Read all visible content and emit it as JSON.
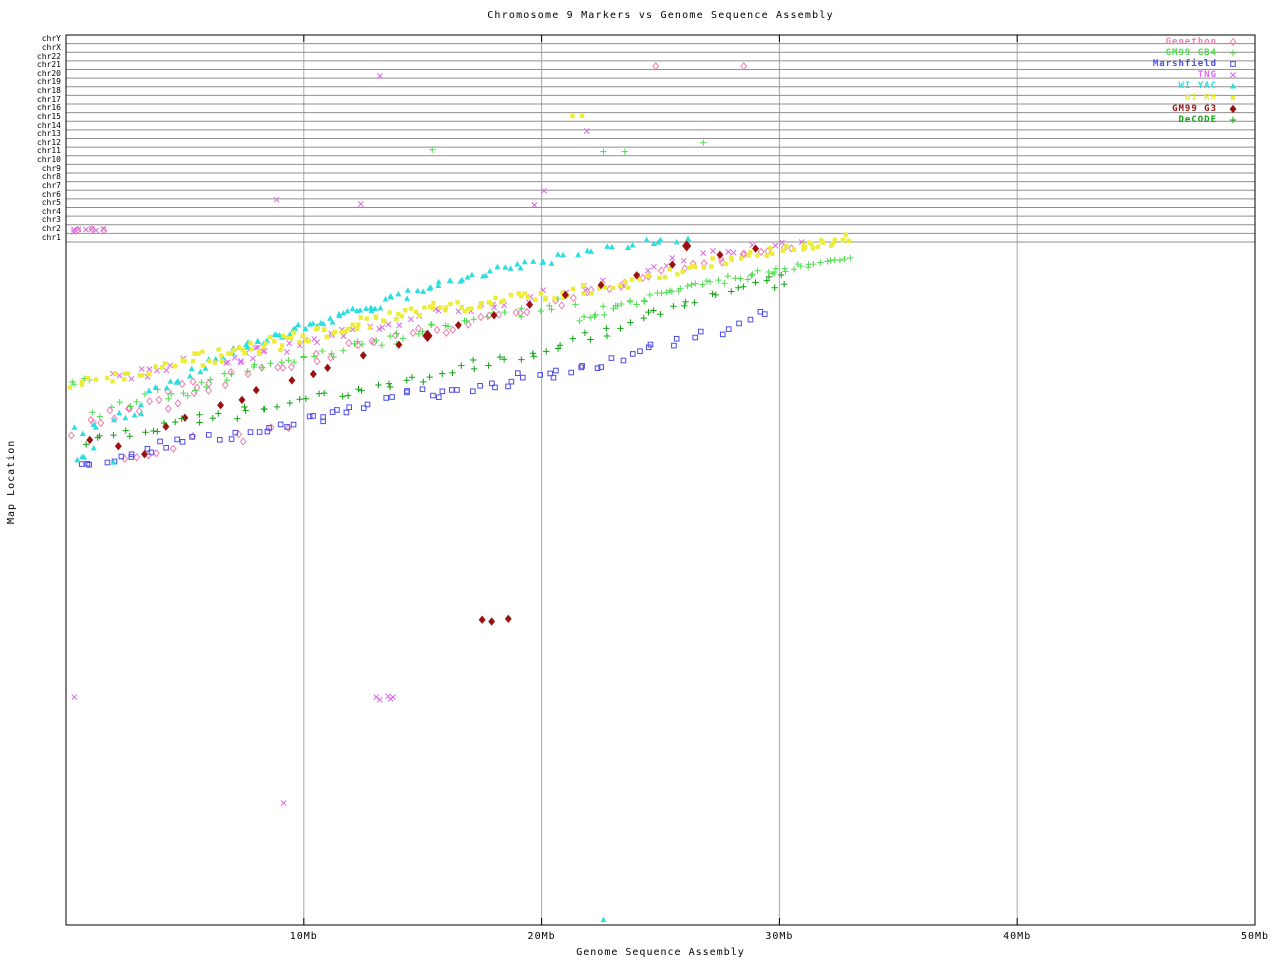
{
  "chart_data": {
    "type": "scatter",
    "title": "Chromosome 9 Markers vs Genome Sequence Assembly",
    "xlabel": "Genome Sequence Assembly",
    "ylabel": "Map Location",
    "x_unit": "Mb",
    "x_range": [
      0,
      50
    ],
    "x_ticks": [
      {
        "mb": 10,
        "label": "10Mb"
      },
      {
        "mb": 20,
        "label": "20Mb"
      },
      {
        "mb": 30,
        "label": "30Mb"
      },
      {
        "mb": 40,
        "label": "40Mb"
      },
      {
        "mb": 50,
        "label": "50Mb"
      }
    ],
    "chrom_rows": [
      "chrY",
      "chrX",
      "chr22",
      "chr21",
      "chr20",
      "chr19",
      "chr18",
      "chr17",
      "chr16",
      "chr15",
      "chr14",
      "chr13",
      "chr12",
      "chr11",
      "chr10",
      "chr9",
      "chr8",
      "chr7",
      "chr6",
      "chr5",
      "chr4",
      "chr3",
      "chr2",
      "chr1"
    ],
    "y_axis_note": "y given in u units: 0 = bottom axis, 100 = top axis; the 24 chromosome rows occupy u 77.4..100, chr9 genetic map occupies the region below",
    "cluster_format": "[x0_Mb, x1_Mb, u0, u1, count, u_spread] - dense marker runs along the chr9 map-vs-assembly diagonal",
    "point_format": "[x_Mb, u, optional_size_multiplier]",
    "seed": 7,
    "grid": {
      "vertical_color": "#a8a8a8",
      "chrom_line_color": "#8f8f8f",
      "border_color": "#000000"
    },
    "series": [
      {
        "name": "Genethon",
        "color": "#f07eb2",
        "marker": "diamond-open",
        "clusters": [
          [
            0.3,
            3,
            55.8,
            58.5,
            8,
            2.2
          ],
          [
            3,
            6,
            57.5,
            59.8,
            7,
            1.8
          ],
          [
            4,
            8,
            59.6,
            62.2,
            8,
            1.5
          ],
          [
            8,
            12,
            61.8,
            65,
            8,
            1.4
          ],
          [
            12,
            16,
            64.6,
            67.3,
            8,
            1.2
          ],
          [
            16,
            20,
            66.9,
            69.6,
            8,
            1.2
          ],
          [
            20,
            24,
            69.7,
            71.8,
            8,
            1
          ],
          [
            24,
            28,
            72.5,
            74.9,
            8,
            0.9
          ],
          [
            28,
            31,
            75,
            76.5,
            6,
            0.7
          ],
          [
            4.5,
            10,
            53.9,
            56.2,
            6,
            1.2
          ],
          [
            2,
            4,
            52,
            53.4,
            4,
            1
          ]
        ],
        "points": [
          [
            24.8,
            96.5
          ],
          [
            28.5,
            96.5
          ],
          [
            0.5,
            78.1
          ],
          [
            1.1,
            78.2
          ],
          [
            1.6,
            78.05
          ]
        ]
      },
      {
        "name": "GM99 GB4",
        "color": "#4fdc4f",
        "marker": "plus",
        "clusters": [
          [
            0.15,
            1,
            60.7,
            61.4,
            4,
            0.8
          ],
          [
            1,
            4,
            56.8,
            59.6,
            8,
            1.5
          ],
          [
            4,
            7,
            59,
            61.7,
            10,
            1.4
          ],
          [
            7,
            10,
            61.5,
            63.9,
            10,
            1.3
          ],
          [
            10,
            13,
            63.5,
            65.6,
            10,
            1.2
          ],
          [
            13,
            16,
            65.2,
            67.9,
            10,
            1.2
          ],
          [
            16,
            21.5,
            67.4,
            70.1,
            14,
            1.1
          ],
          [
            21.5,
            26,
            68.2,
            71.6,
            24,
            0.9
          ],
          [
            26,
            29.5,
            71.6,
            73.4,
            16,
            0.8
          ],
          [
            29.5,
            33,
            73.4,
            74.8,
            18,
            0.8
          ]
        ],
        "points": [
          [
            15.4,
            87.1
          ],
          [
            22.6,
            86.9
          ],
          [
            26.8,
            87.9
          ],
          [
            23.5,
            86.9
          ]
        ]
      },
      {
        "name": "Marshfield",
        "color": "#4c4cec",
        "marker": "square-open",
        "clusters": [
          [
            0.3,
            2,
            51.2,
            52.8,
            5,
            1.2
          ],
          [
            2,
            5,
            52.5,
            54.4,
            8,
            1.2
          ],
          [
            5,
            9,
            53.9,
            56.1,
            10,
            1.3
          ],
          [
            9,
            12,
            55.8,
            58.3,
            10,
            1.2
          ],
          [
            12,
            15,
            57.9,
            60,
            8,
            1.1
          ],
          [
            15,
            18,
            59.2,
            60.7,
            8,
            1
          ],
          [
            18,
            22,
            60.7,
            62.5,
            10,
            1
          ],
          [
            22,
            25,
            62.4,
            65.1,
            8,
            1
          ],
          [
            25,
            27.5,
            65.2,
            66.8,
            5,
            0.8
          ],
          [
            27.5,
            29.5,
            66.9,
            68.8,
            4,
            0.7
          ]
        ],
        "points": [
          [
            29.2,
            68.9
          ],
          [
            19,
            62
          ],
          [
            20.5,
            61.5
          ]
        ]
      },
      {
        "name": "TNG",
        "color": "#da6ae8",
        "marker": "cross",
        "clusters": [
          [
            0.1,
            1.7,
            78,
            78.2,
            7,
            0.3
          ],
          [
            2,
            5,
            61.3,
            63.2,
            10,
            1.2
          ],
          [
            6.5,
            8.5,
            63.1,
            64.8,
            12,
            1.2
          ],
          [
            9,
            12,
            64.7,
            66.8,
            10,
            1.2
          ],
          [
            12,
            16,
            66.4,
            68.9,
            10,
            1
          ],
          [
            16,
            20,
            68.6,
            70.8,
            8,
            1
          ],
          [
            20,
            24,
            70.8,
            72.7,
            7,
            0.9
          ],
          [
            24,
            28,
            73.8,
            75.8,
            8,
            0.8
          ],
          [
            28,
            31,
            75.8,
            76.9,
            5,
            0.6
          ]
        ],
        "points": [
          [
            13.2,
            95.4
          ],
          [
            21.9,
            89.2
          ],
          [
            20.1,
            82.5
          ],
          [
            8.85,
            81.5
          ],
          [
            12.4,
            81
          ],
          [
            19.7,
            80.9
          ],
          [
            0.35,
            25.6
          ],
          [
            13.05,
            25.6
          ],
          [
            13.2,
            25.3
          ],
          [
            13.55,
            25.7
          ],
          [
            13.65,
            25.4
          ],
          [
            13.75,
            25.6
          ],
          [
            9.15,
            13.7
          ]
        ]
      },
      {
        "name": "WI YAC",
        "color": "#2cdede",
        "marker": "triangle-filled",
        "clusters": [
          [
            0.4,
            3.5,
            55.5,
            58,
            10,
            1.8
          ],
          [
            3.5,
            7,
            60.5,
            63.8,
            14,
            1.5
          ],
          [
            7,
            10.5,
            64.5,
            67.5,
            20,
            1
          ],
          [
            10.5,
            13.5,
            67.5,
            70,
            18,
            0.9
          ],
          [
            13.5,
            17,
            70.2,
            72.8,
            16,
            0.8
          ],
          [
            17,
            20.5,
            73,
            74.8,
            14,
            0.8
          ],
          [
            20.5,
            24.5,
            75.2,
            76.8,
            10,
            0.7
          ],
          [
            24.5,
            26.5,
            76.5,
            77.2,
            5,
            0.5
          ],
          [
            0.2,
            1.2,
            51.5,
            53.5,
            4,
            1.2
          ]
        ],
        "points": [
          [
            22.6,
            0.6
          ],
          [
            25,
            77
          ],
          [
            2,
            52
          ]
        ]
      },
      {
        "name": "WI RH",
        "color": "#ecec3a",
        "marker": "square-filled",
        "clusters": [
          [
            0.15,
            2,
            60.8,
            61.4,
            7,
            1
          ],
          [
            2,
            5,
            61.4,
            63.2,
            14,
            1.4
          ],
          [
            5,
            9,
            63.2,
            65.4,
            26,
            1.8
          ],
          [
            9,
            13,
            65.4,
            68,
            26,
            1.6
          ],
          [
            13,
            16.5,
            68,
            69.8,
            20,
            1.2
          ],
          [
            16.5,
            20,
            69.4,
            70.9,
            18,
            1.2
          ],
          [
            20,
            24,
            70.6,
            72.3,
            18,
            1.2
          ],
          [
            24,
            28,
            72.5,
            74.8,
            16,
            1
          ],
          [
            28,
            31.5,
            74.9,
            76.5,
            14,
            0.9
          ],
          [
            31,
            33,
            76,
            77.3,
            12,
            0.9
          ]
        ],
        "points": [
          [
            21.3,
            90.9
          ],
          [
            21.7,
            90.9
          ]
        ]
      },
      {
        "name": "GM99 G3",
        "color": "#9b1010",
        "marker": "diamond-filled",
        "clusters": [],
        "points": [
          [
            1,
            54.5
          ],
          [
            2.2,
            53.8
          ],
          [
            3.3,
            52.9
          ],
          [
            4.2,
            56
          ],
          [
            5,
            57
          ],
          [
            6.5,
            58.4
          ],
          [
            7.4,
            59
          ],
          [
            8,
            60.1
          ],
          [
            9.5,
            61.2
          ],
          [
            10.4,
            61.9
          ],
          [
            11,
            62.6
          ],
          [
            12.5,
            64
          ],
          [
            14,
            65.2
          ],
          [
            15.2,
            66.2,
            1.6
          ],
          [
            16.5,
            67.4
          ],
          [
            18,
            68.5
          ],
          [
            19.5,
            69.7
          ],
          [
            21,
            70.8
          ],
          [
            22.5,
            71.9
          ],
          [
            24,
            73
          ],
          [
            25.5,
            74.2
          ],
          [
            26.1,
            76.3,
            1.4
          ],
          [
            27.5,
            75.3
          ],
          [
            29,
            76
          ],
          [
            17.5,
            34.3
          ],
          [
            17.9,
            34.1
          ],
          [
            18.6,
            34.4
          ]
        ]
      },
      {
        "name": "DeCODE",
        "color": "#12a312",
        "marker": "plus",
        "clusters": [
          [
            0.5,
            3,
            53.9,
            55.5,
            6,
            1
          ],
          [
            3,
            6,
            55.4,
            57.2,
            8,
            1
          ],
          [
            6,
            10,
            56.7,
            59.1,
            10,
            1
          ],
          [
            10,
            14,
            59,
            61.1,
            10,
            1
          ],
          [
            14,
            18,
            60.7,
            63.4,
            10,
            1
          ],
          [
            18,
            22,
            63.3,
            66.2,
            10,
            1
          ],
          [
            22,
            25,
            66,
            69,
            8,
            0.9
          ],
          [
            25,
            28,
            68.9,
            71.2,
            8,
            0.9
          ],
          [
            28,
            30.5,
            71.3,
            73.3,
            6,
            0.8
          ]
        ],
        "points": [
          [
            29.8,
            71.6
          ],
          [
            30.2,
            72
          ]
        ]
      }
    ]
  }
}
